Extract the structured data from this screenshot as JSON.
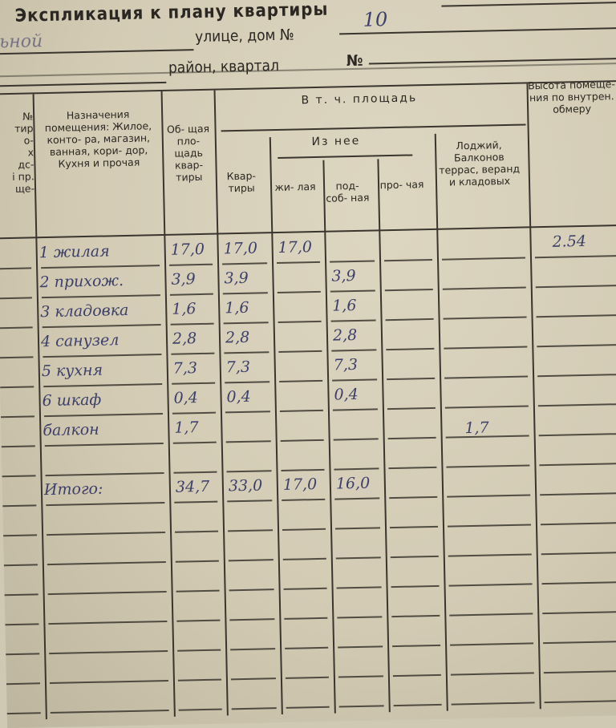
{
  "header": {
    "title": "Экспликация к плану квартиры",
    "street_handwritten": "ьной",
    "street_label": "улице, дом №",
    "house_number": "10",
    "district_label": "район, квартал",
    "block_label": "№"
  },
  "table": {
    "columns": {
      "num": [
        "№",
        "тир",
        "о-",
        "х",
        "дс-",
        "і пр.",
        "ще-"
      ],
      "purpose": "Назначения помещения: Жилое, конто- ра, магазин, ванная, кори- дор, Кухня и прочая",
      "total": "Об- щая пло- щадь квар- тиры",
      "group": "В т. ч. площадь",
      "apartment": "Квар- тиры",
      "of_which": "Из нее",
      "living": "жи- лая",
      "auxiliary": "под- соб- ная",
      "other": "про- чая",
      "loggia": "Лоджий, Балконов террас, веранд и кладовых",
      "height": "Высота помеще- ния по внутрен. обмеру"
    },
    "rows": [
      {
        "name": "1 жилая",
        "total": "17,0",
        "apartment": "17,0",
        "living": "17,0",
        "auxiliary": "",
        "other": "",
        "loggia": "",
        "height": "2.54"
      },
      {
        "name": "2 прихож.",
        "total": "3,9",
        "apartment": "3,9",
        "living": "",
        "auxiliary": "3,9",
        "other": "",
        "loggia": "",
        "height": ""
      },
      {
        "name": "3 кладовка",
        "total": "1,6",
        "apartment": "1,6",
        "living": "",
        "auxiliary": "1,6",
        "other": "",
        "loggia": "",
        "height": ""
      },
      {
        "name": "4 санузел",
        "total": "2,8",
        "apartment": "2,8",
        "living": "",
        "auxiliary": "2,8",
        "other": "",
        "loggia": "",
        "height": ""
      },
      {
        "name": "5 кухня",
        "total": "7,3",
        "apartment": "7,3",
        "living": "",
        "auxiliary": "7,3",
        "other": "",
        "loggia": "",
        "height": ""
      },
      {
        "name": "6 шкаф",
        "total": "0,4",
        "apartment": "0,4",
        "living": "",
        "auxiliary": "0,4",
        "other": "",
        "loggia": "",
        "height": ""
      },
      {
        "name": "балкон",
        "total": "1,7",
        "apartment": "",
        "living": "",
        "auxiliary": "",
        "other": "",
        "loggia": "1,7",
        "height": ""
      },
      {
        "name": "",
        "total": "",
        "apartment": "",
        "living": "",
        "auxiliary": "",
        "other": "",
        "loggia": "",
        "height": ""
      },
      {
        "name": "Итого:",
        "total": "34,7",
        "apartment": "33,0",
        "living": "17,0",
        "auxiliary": "16,0",
        "other": "",
        "loggia": "",
        "height": ""
      }
    ]
  }
}
